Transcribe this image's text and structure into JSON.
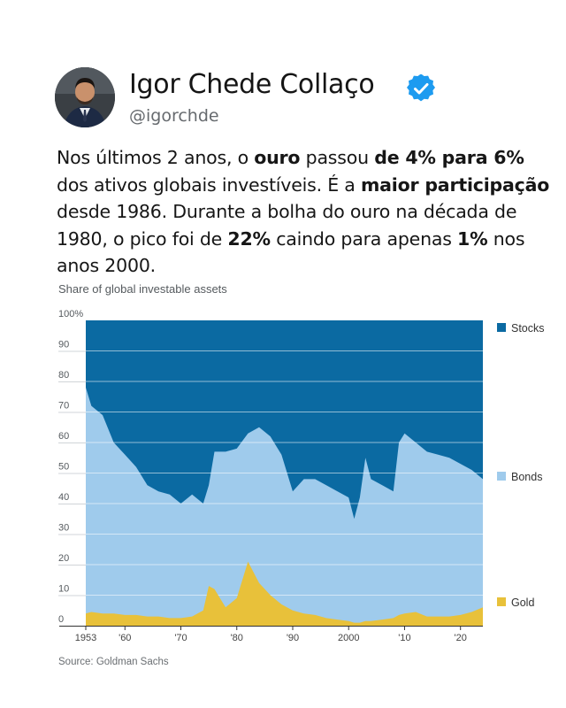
{
  "author": {
    "name": "Igor Chede Collaço",
    "handle": "@igorchde",
    "verified_icon": "verified-badge-icon",
    "badge_color": "#1d9bf0"
  },
  "tweet": {
    "segments": [
      {
        "text": "Nos últimos 2 anos, o ",
        "bold": false
      },
      {
        "text": "ouro",
        "bold": true
      },
      {
        "text": " passou ",
        "bold": false
      },
      {
        "text": "de 4% para 6%",
        "bold": true
      },
      {
        "text": " dos ativos globais investíveis. É a ",
        "bold": false
      },
      {
        "text": "maior participação",
        "bold": true
      },
      {
        "text": " desde 1986. Durante a bolha do ouro na década de 1980, o pico foi de ",
        "bold": false
      },
      {
        "text": "22%",
        "bold": true
      },
      {
        "text": " caindo para apenas ",
        "bold": false
      },
      {
        "text": "1%",
        "bold": true
      },
      {
        "text": " nos anos 2000.",
        "bold": false
      }
    ]
  },
  "chart_data": {
    "type": "area",
    "title": "Share of global investable assets",
    "source": "Source: Goldman Sachs",
    "x_range": [
      1953,
      2024
    ],
    "ylim": [
      0,
      100
    ],
    "y_ticks": [
      "100%",
      "90",
      "80",
      "70",
      "60",
      "50",
      "40",
      "30",
      "20",
      "10",
      "0"
    ],
    "y_tick_values": [
      100,
      90,
      80,
      70,
      60,
      50,
      40,
      30,
      20,
      10,
      0
    ],
    "x_ticks": [
      {
        "label": "1953",
        "x": 1953
      },
      {
        "label": "'60",
        "x": 1960
      },
      {
        "label": "'70",
        "x": 1970
      },
      {
        "label": "'80",
        "x": 1980
      },
      {
        "label": "'90",
        "x": 1990
      },
      {
        "label": "2000",
        "x": 2000
      },
      {
        "label": "'10",
        "x": 2010
      },
      {
        "label": "'20",
        "x": 2020
      }
    ],
    "grid": true,
    "legend_position": "right",
    "series": [
      {
        "name": "Stocks",
        "color": "#0b6aa2"
      },
      {
        "name": "Bonds",
        "color": "#9fcbec"
      },
      {
        "name": "Gold",
        "color": "#e8c13a"
      }
    ],
    "x": [
      1953,
      1954,
      1956,
      1958,
      1960,
      1962,
      1964,
      1966,
      1968,
      1970,
      1972,
      1974,
      1975,
      1976,
      1978,
      1980,
      1982,
      1984,
      1986,
      1988,
      1990,
      1992,
      1994,
      1996,
      1998,
      2000,
      2001,
      2002,
      2003,
      2004,
      2006,
      2008,
      2009,
      2010,
      2012,
      2014,
      2016,
      2018,
      2020,
      2022,
      2024
    ],
    "gold": [
      4,
      4.5,
      4,
      4,
      3.5,
      3.5,
      3,
      3,
      2.5,
      2.5,
      3,
      5,
      13,
      12,
      6,
      9,
      21,
      14,
      10,
      7,
      5,
      4,
      3.5,
      2.5,
      2,
      1.5,
      1,
      1,
      1.5,
      1.5,
      2,
      2.5,
      3.5,
      4,
      4.5,
      3,
      3,
      3,
      3.5,
      4.5,
      6
    ],
    "bonds_top": [
      78,
      72,
      69,
      60,
      56,
      52,
      46,
      44,
      43,
      40,
      43,
      40,
      46,
      57,
      57,
      58,
      63,
      65,
      62,
      56,
      44,
      48,
      48,
      46,
      44,
      42,
      35,
      42,
      55,
      48,
      46,
      44,
      60,
      63,
      60,
      57,
      56,
      55,
      53,
      51,
      48
    ]
  }
}
